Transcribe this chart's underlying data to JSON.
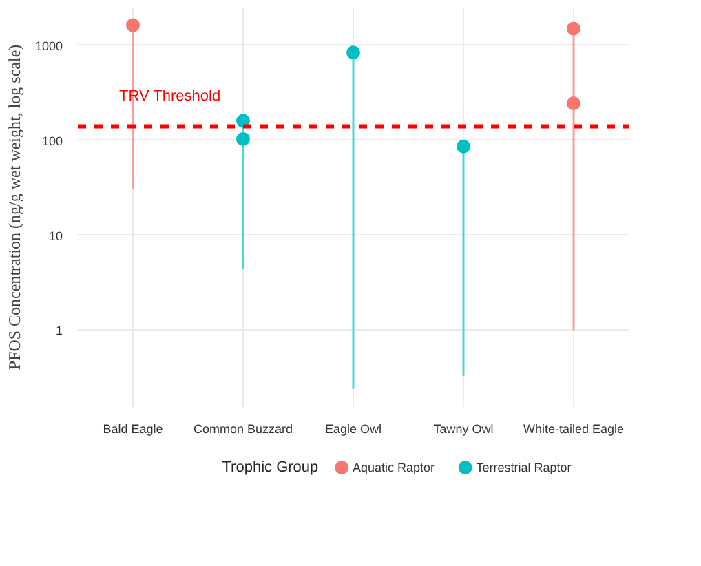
{
  "chart_data": {
    "type": "scatter",
    "ylabel": "PFOS Concentration (ng/g wet weight, log scale)",
    "legend_title": "Trophic Group",
    "categories": [
      "Bald Eagle",
      "Common Buzzard",
      "Eagle Owl",
      "Tawny Owl",
      "White-tailed Eagle"
    ],
    "log": "y",
    "ylim": [
      0.155,
      2500
    ],
    "yticks": [
      1,
      10,
      100,
      1000
    ],
    "grid": true,
    "legend": "bottom",
    "marker": "circle",
    "series": [
      {
        "type": "line",
        "marker": "none",
        "color": "#f8a19a",
        "x": [
          "Bald Eagle",
          "Bald Eagle"
        ],
        "values": [
          31,
          1630
        ]
      },
      {
        "type": "line",
        "marker": "none",
        "color": "#4fd3d6",
        "x": [
          "Common Buzzard",
          "Common Buzzard"
        ],
        "values": [
          4.4,
          160
        ]
      },
      {
        "type": "line",
        "marker": "none",
        "color": "#4fd3d6",
        "x": [
          "Eagle Owl",
          "Eagle Owl"
        ],
        "values": [
          0.24,
          840
        ]
      },
      {
        "type": "line",
        "marker": "none",
        "color": "#4fd3d6",
        "x": [
          "Tawny Owl",
          "Tawny Owl"
        ],
        "values": [
          0.33,
          86
        ]
      },
      {
        "type": "line",
        "marker": "none",
        "color": "#f8a19a",
        "x": [
          "White-tailed Eagle",
          "White-tailed Eagle"
        ],
        "values": [
          1,
          1500
        ]
      },
      {
        "name": "Aquatic Raptor",
        "color": "#f8766d",
        "x": [
          "Bald Eagle",
          "White-tailed Eagle",
          "White-tailed Eagle"
        ],
        "values": [
          1630,
          1500,
          245
        ]
      },
      {
        "name": "Terrestrial Raptor",
        "color": "#00bfc4",
        "x": [
          "Common Buzzard",
          "Common Buzzard",
          "Eagle Owl",
          "Tawny Owl"
        ],
        "values": [
          160,
          103,
          840,
          86
        ]
      }
    ],
    "ref_lines": [
      {
        "axis": "y",
        "value": 140,
        "label": "TRV Threshold",
        "color": "#ff0000",
        "line_style": "dashed"
      }
    ]
  }
}
